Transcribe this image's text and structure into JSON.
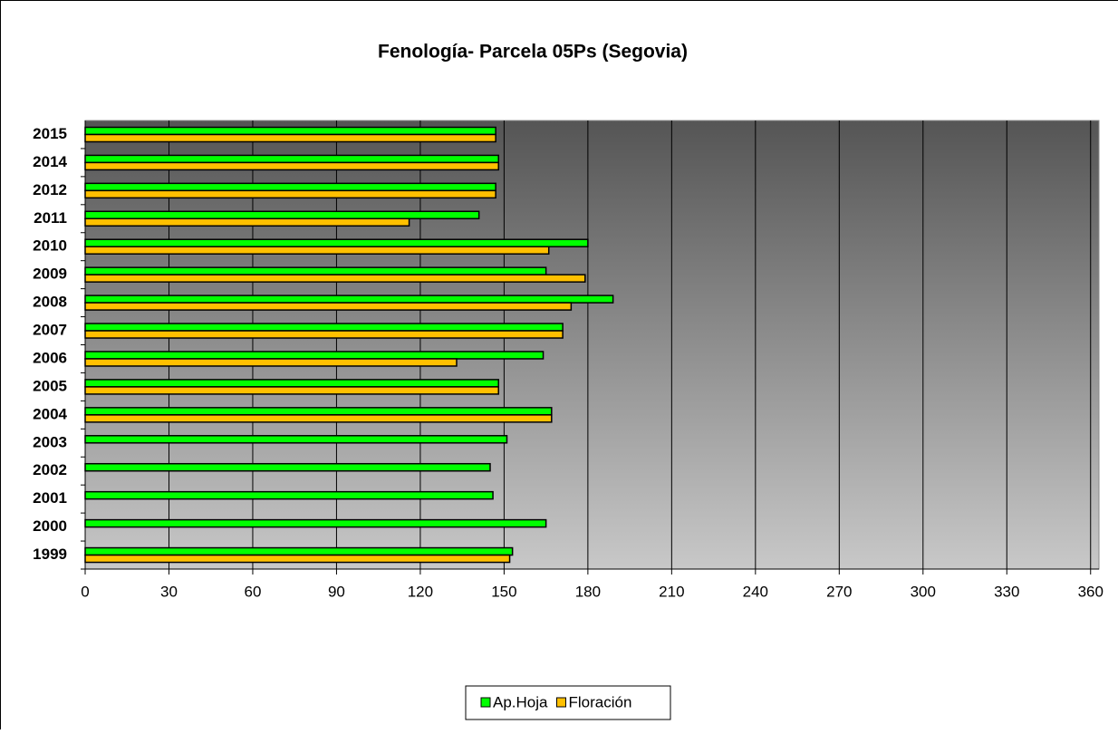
{
  "chart_data": {
    "type": "hbar",
    "title": "Fenología- Parcela 05Ps (Segovia)",
    "categories": [
      "1999",
      "2000",
      "2001",
      "2002",
      "2003",
      "2004",
      "2005",
      "2006",
      "2007",
      "2008",
      "2009",
      "2010",
      "2011",
      "2012",
      "2014",
      "2015"
    ],
    "series": [
      {
        "name": "Ap.Hoja",
        "color": "#00ff00",
        "values": [
          153,
          165,
          146,
          145,
          151,
          167,
          148,
          164,
          171,
          189,
          165,
          180,
          141,
          147,
          148,
          147
        ]
      },
      {
        "name": "Floración",
        "color": "#ffc000",
        "values": [
          152,
          null,
          null,
          null,
          null,
          167,
          148,
          133,
          171,
          174,
          179,
          166,
          116,
          147,
          148,
          147
        ]
      }
    ],
    "xlim": [
      0,
      363
    ],
    "xticks": [
      0,
      30,
      60,
      90,
      120,
      150,
      180,
      210,
      240,
      270,
      300,
      330,
      360
    ],
    "grid": true
  }
}
